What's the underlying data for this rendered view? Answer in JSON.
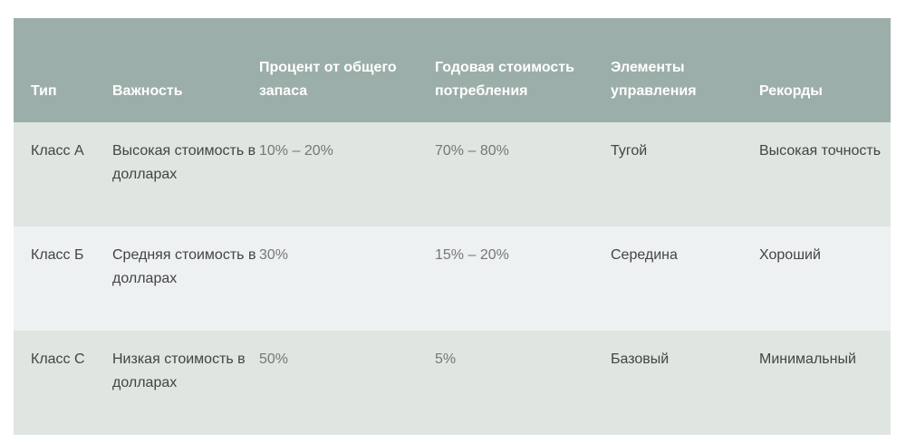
{
  "table": {
    "headers": [
      "Тип",
      "Важность",
      "Процент от общего запаса",
      "Годовая стоимость потребления",
      "Элементы управления",
      "Рекорды"
    ],
    "rows": [
      [
        "Класс А",
        "Высокая стоимость в долларах",
        "10% – 20%",
        "70% – 80%",
        "Тугой",
        "Высокая точность"
      ],
      [
        "Класс Б",
        "Средняя стоимость в долларах",
        "30%",
        "15% – 20%",
        "Середина",
        "Хороший"
      ],
      [
        "Класс С",
        "Низкая стоимость в долларах",
        "50%",
        "5%",
        "Базовый",
        "Минимальный"
      ]
    ]
  },
  "colors": {
    "header_bg": "#9caea9",
    "row_odd_bg": "#dfe5e1",
    "row_even_bg": "#edf1f1"
  }
}
